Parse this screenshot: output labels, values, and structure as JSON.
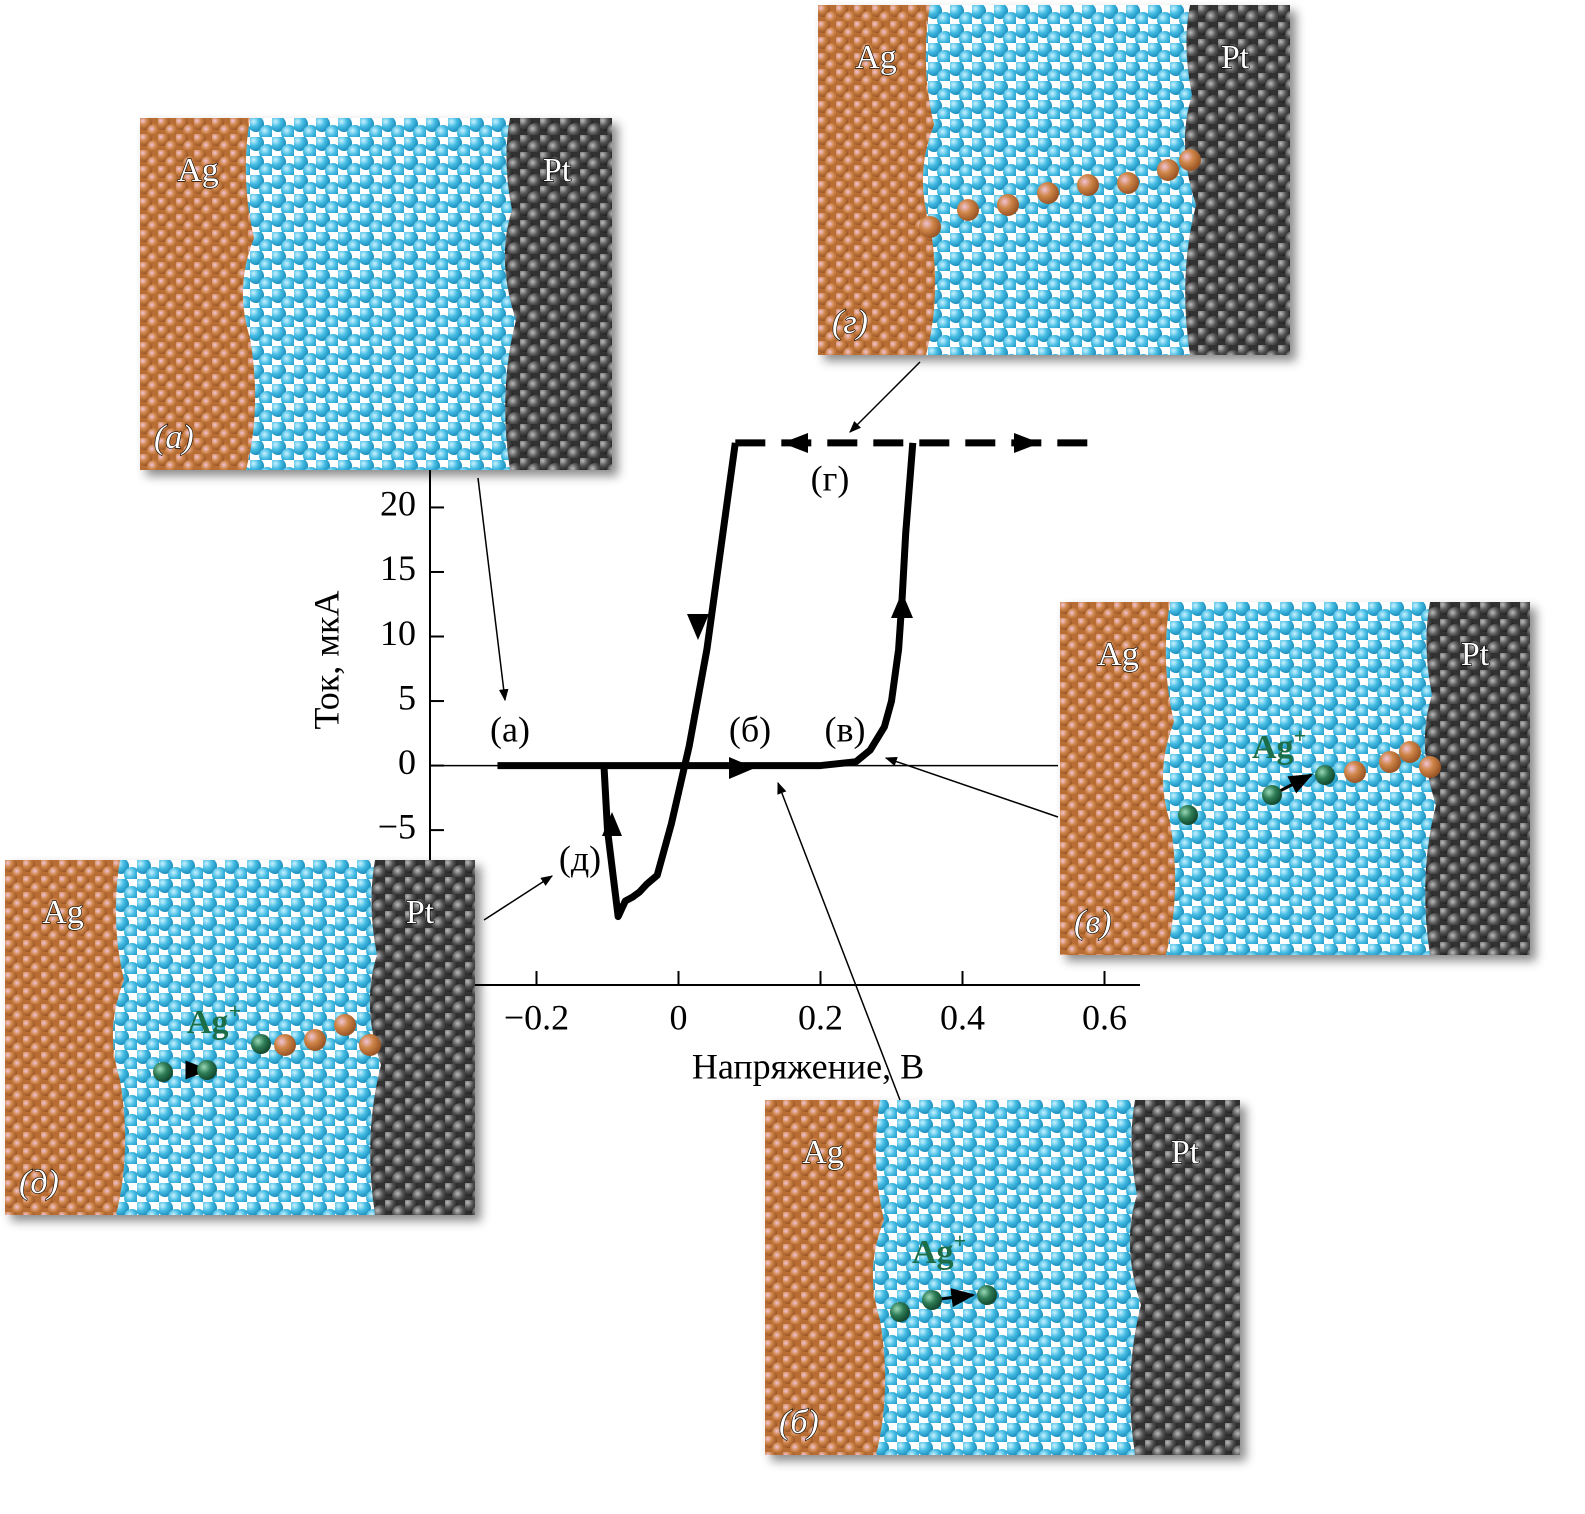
{
  "chart_data": {
    "type": "line",
    "xlabel": "Напряжение, В",
    "ylabel": "Ток, мкА",
    "xlim": [
      -0.35,
      0.65
    ],
    "ylim": [
      -17,
      26
    ],
    "xticks": [
      {
        "value": -0.2,
        "label": "−0.2"
      },
      0,
      0.2,
      0.4,
      0.6
    ],
    "yticks": [
      {
        "value": -5,
        "label": "−5"
      },
      0,
      5,
      10,
      15,
      20
    ],
    "series": [
      {
        "color": "#000000",
        "dashed": false,
        "x": [
          -0.255,
          0.1,
          0.2,
          0.25,
          0.27,
          0.29,
          0.3,
          0.31,
          0.315,
          0.32,
          0.33,
          null,
          0.08,
          0.065,
          0.04,
          0.015,
          -0.01,
          -0.03,
          -0.045,
          -0.055,
          -0.065,
          -0.075,
          -0.085,
          -0.1,
          -0.105
        ],
        "values": [
          0,
          0,
          0,
          0.3,
          1.2,
          3,
          5,
          9,
          13,
          18,
          25,
          null,
          25,
          19,
          9,
          1.5,
          -4.5,
          -8.5,
          -9.2,
          -9.8,
          -10.2,
          -10.5,
          -11.7,
          -5,
          0
        ]
      },
      {
        "color": "#000000",
        "dashed": true,
        "x": [
          0.08,
          0.58
        ],
        "values": [
          25,
          25
        ]
      }
    ],
    "annotations": [
      "(а)",
      "(б)",
      "(в)",
      "(г)",
      "(д)"
    ],
    "zero_line": true
  },
  "insets": [
    {
      "label": "(а)",
      "left": "Ag",
      "right": "Pt"
    },
    {
      "label": "(г)",
      "left": "Ag",
      "right": "Pt"
    },
    {
      "label": "(в)",
      "left": "Ag",
      "right": "Pt",
      "ion": "Ag",
      "ion_charge": "+"
    },
    {
      "label": "(д)",
      "left": "Ag",
      "right": "Pt",
      "ion": "Ag",
      "ion_charge": "+"
    },
    {
      "label": "(б)",
      "left": "Ag",
      "right": "Pt",
      "ion": "Ag",
      "ion_charge": "+"
    }
  ]
}
